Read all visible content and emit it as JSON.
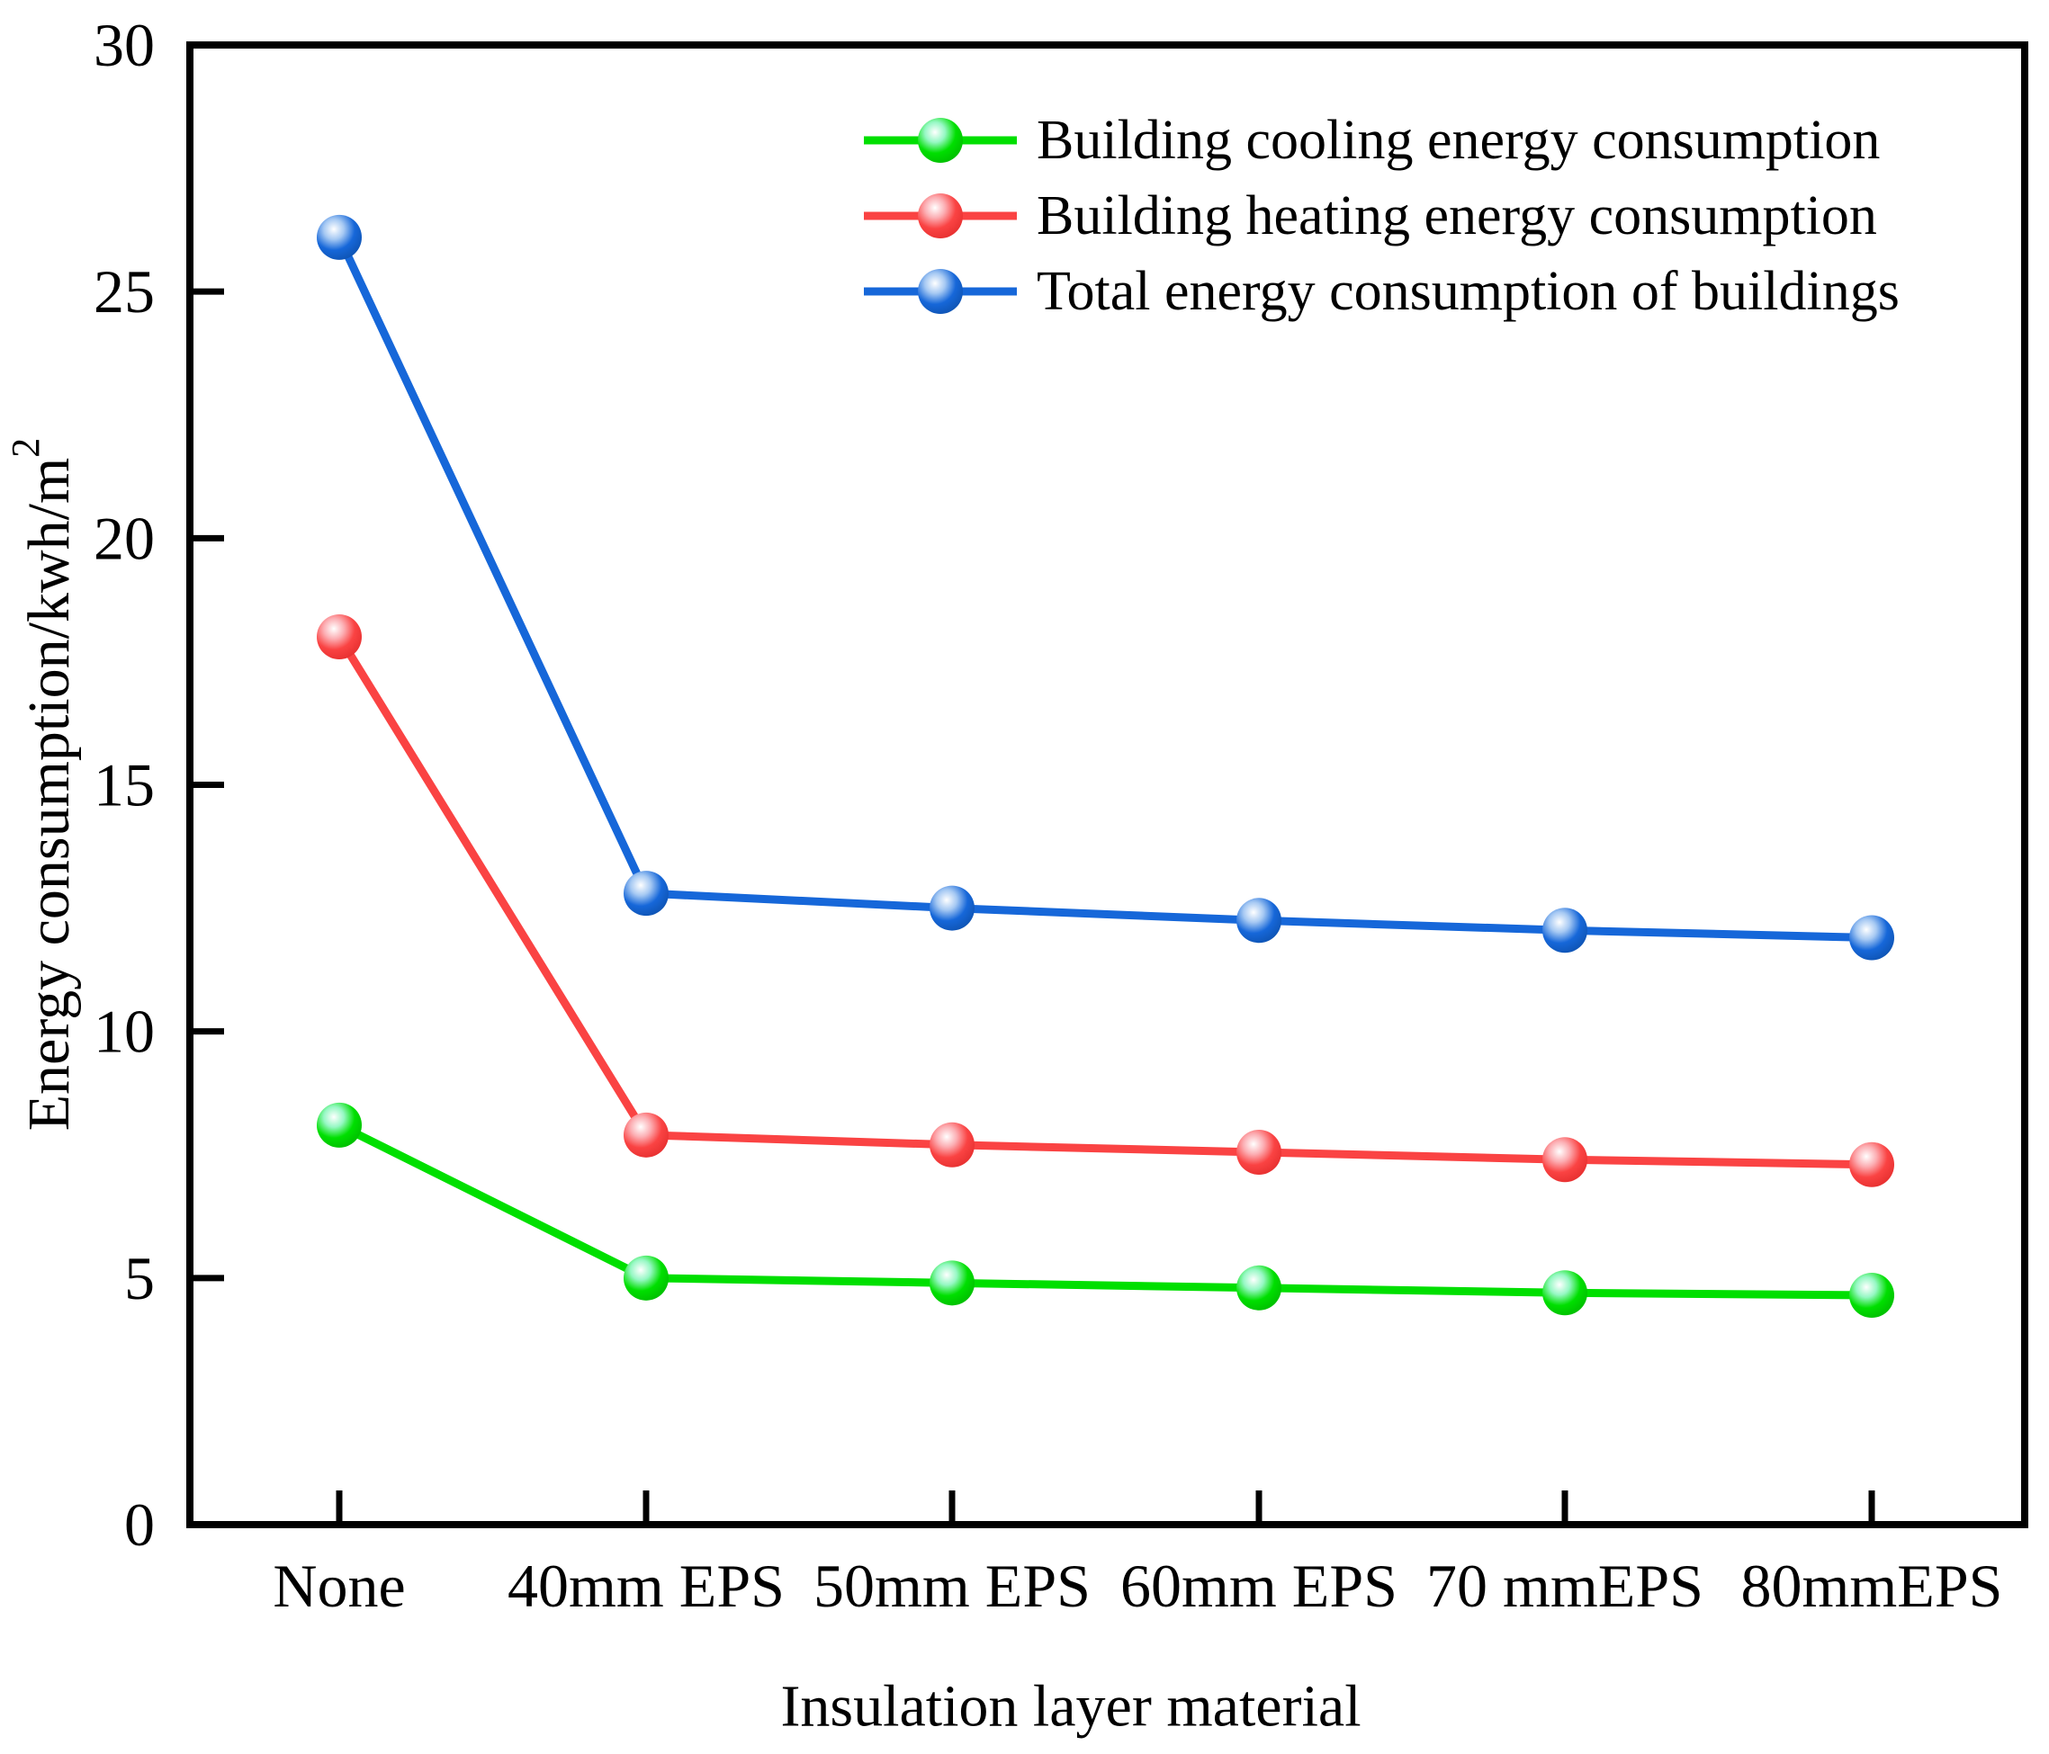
{
  "figure": {
    "background": "#ffffff",
    "axis_color": "#000000"
  },
  "chart_data": {
    "type": "line",
    "title": "",
    "xlabel": "Insulation layer material",
    "ylabel": "Energy consumption/kwh/m²",
    "categories": [
      "None",
      "40mm EPS",
      "50mm EPS",
      "60mm EPS",
      "70 mmEPS",
      "80mmEPS"
    ],
    "series": [
      {
        "name": "Building cooling energy consumption",
        "color": "#00DF00",
        "gradient": [
          "#FFFFFF",
          "#96F8C4",
          "#00DF00",
          "#00BB00"
        ],
        "values": [
          8.1,
          5.0,
          4.9,
          4.8,
          4.7,
          4.65
        ]
      },
      {
        "name": "Building heating energy consumption",
        "color": "#FA4343",
        "gradient": [
          "#FFFFFF",
          "#FCAFB4",
          "#FA4343",
          "#E52E2E"
        ],
        "values": [
          18.0,
          7.9,
          7.7,
          7.55,
          7.4,
          7.3
        ]
      },
      {
        "name": "Total energy consumption of buildings",
        "color": "#1667D9",
        "gradient": [
          "#FFFFFF",
          "#A6C9F3",
          "#1667D9",
          "#0E52B0"
        ],
        "values": [
          26.1,
          12.8,
          12.5,
          12.25,
          12.05,
          11.9
        ]
      }
    ],
    "ylim": [
      0,
      30
    ],
    "y_ticks": [
      0,
      5,
      10,
      15,
      20,
      25,
      30
    ],
    "grid": false,
    "legend_position": "top-right-inside",
    "marker": "sphere"
  }
}
